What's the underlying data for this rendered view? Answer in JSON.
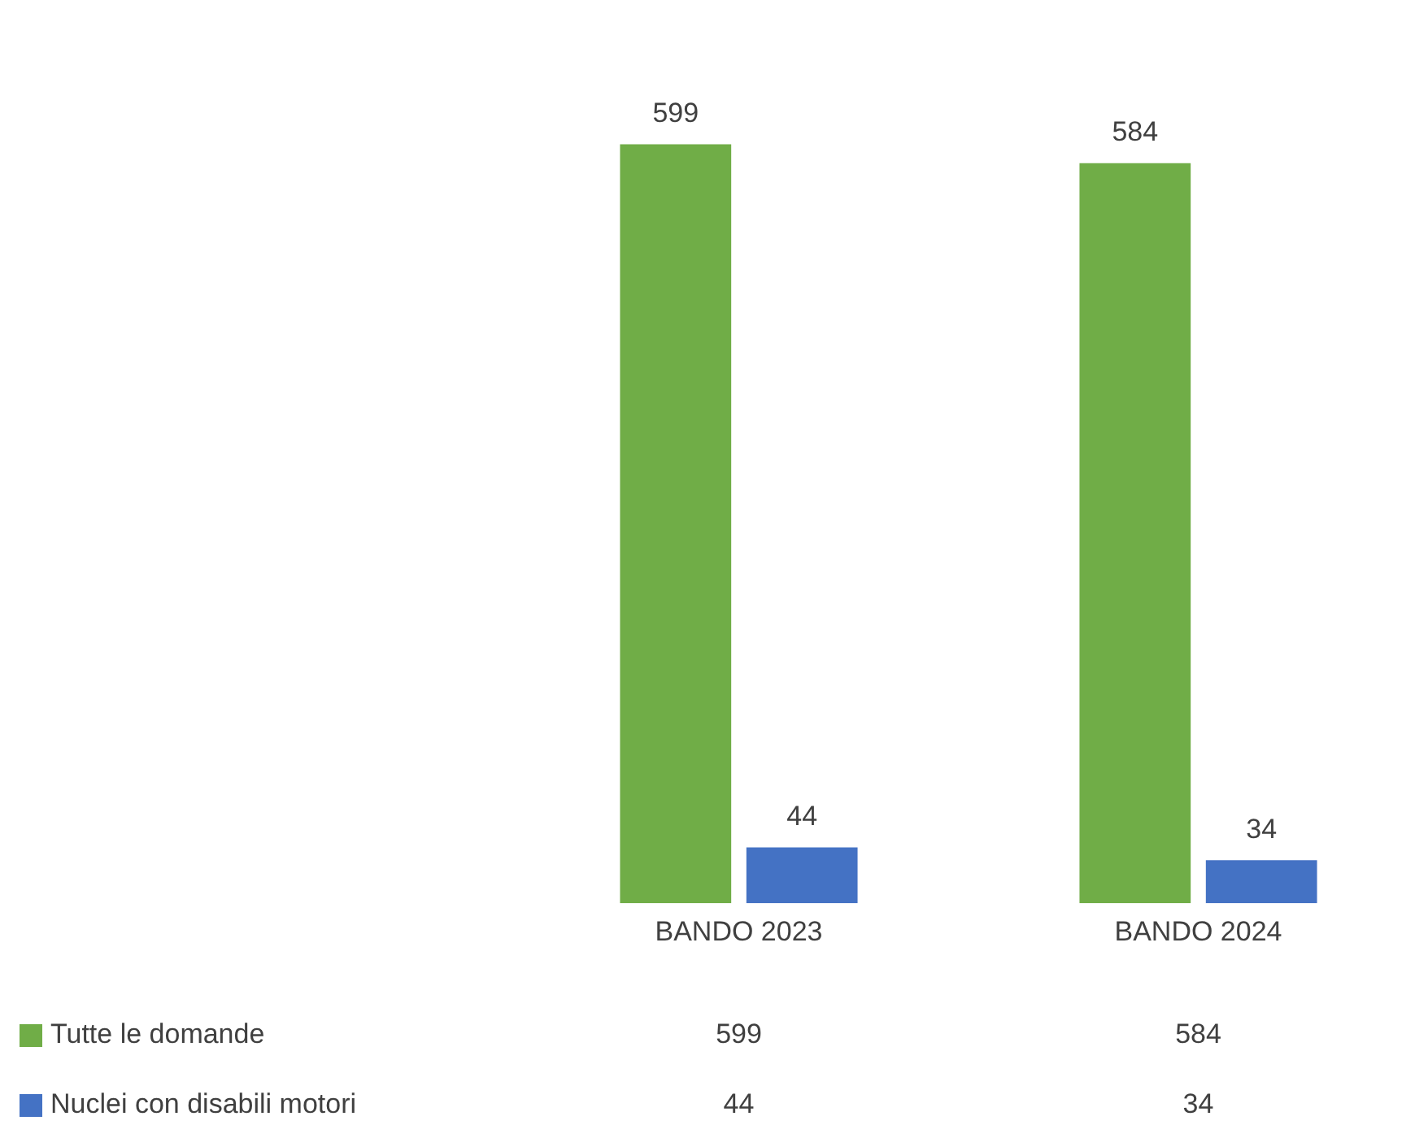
{
  "chart_data": {
    "type": "bar",
    "categories": [
      "BANDO 2023",
      "BANDO 2024"
    ],
    "series": [
      {
        "name": "Tutte le domande",
        "color": "#70ad47",
        "values": [
          599,
          584
        ],
        "value_labels": [
          "599",
          "584"
        ]
      },
      {
        "name": "Nuclei con disabili motori",
        "color": "#4472c4",
        "values": [
          44,
          34
        ],
        "value_labels": [
          "44",
          "34"
        ]
      }
    ],
    "annotations": [
      "599",
      "584",
      "44",
      "34"
    ],
    "legend": "bottom",
    "grid": false
  }
}
